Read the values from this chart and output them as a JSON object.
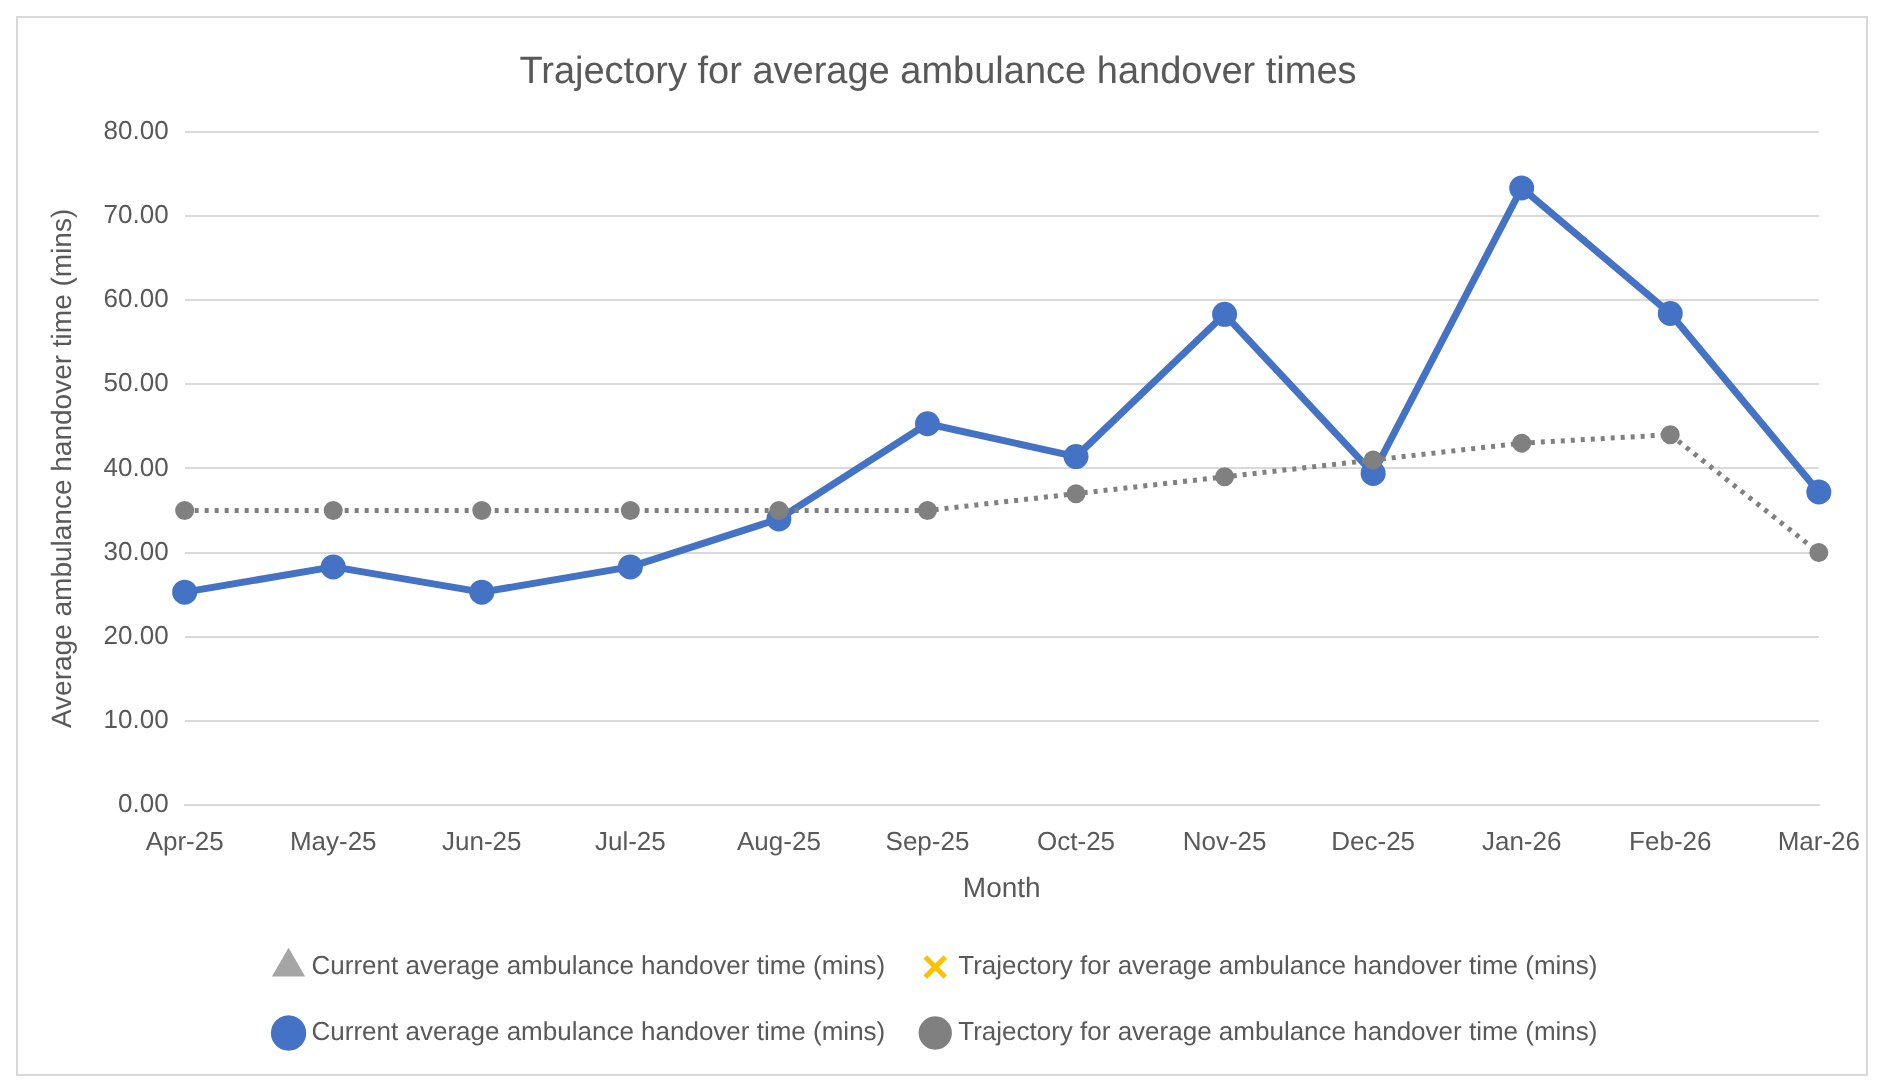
{
  "chart_data": {
    "type": "line",
    "title": "Trajectory for average ambulance handover times",
    "xlabel": "Month",
    "ylabel": "Average ambulance handover time (mins)",
    "categories": [
      "Apr-25",
      "May-25",
      "Jun-25",
      "Jul-25",
      "Aug-25",
      "Sep-25",
      "Oct-25",
      "Nov-25",
      "Dec-25",
      "Jan-26",
      "Feb-26",
      "Mar-26"
    ],
    "series": [
      {
        "name": "Current average ambulance handover time (mins)",
        "color": "#a5a5a5",
        "marker": "triangle",
        "line_style": "solid",
        "values": [
          null,
          null,
          null,
          null,
          null,
          null,
          null,
          null,
          null,
          null,
          null,
          null
        ]
      },
      {
        "name": "Trajectory for average ambulance handover time (mins)",
        "color": "#ffc000",
        "marker": "cross",
        "line_style": "dotted",
        "values": [
          null,
          null,
          null,
          null,
          null,
          null,
          null,
          null,
          null,
          null,
          null,
          null
        ]
      },
      {
        "name": "Current average ambulance handover time (mins)",
        "color": "#4472c4",
        "marker": "circle",
        "line_style": "solid",
        "values": [
          25.3,
          28.3,
          25.3,
          28.3,
          34.0,
          45.3,
          41.4,
          58.3,
          39.4,
          73.3,
          58.4,
          37.2
        ]
      },
      {
        "name": "Trajectory for average ambulance handover time (mins)",
        "color": "#808080",
        "marker": "circle",
        "line_style": "dotted",
        "values": [
          35,
          35,
          35,
          35,
          35,
          35,
          37,
          39,
          41,
          43,
          44,
          30
        ]
      }
    ],
    "ylim": [
      0,
      80
    ],
    "yticks": [
      {
        "value": 0,
        "label": "0.00"
      },
      {
        "value": 10,
        "label": "10.00"
      },
      {
        "value": 20,
        "label": "20.00"
      },
      {
        "value": 30,
        "label": "30.00"
      },
      {
        "value": 40,
        "label": "40.00"
      },
      {
        "value": 50,
        "label": "50.00"
      },
      {
        "value": 60,
        "label": "60.00"
      },
      {
        "value": 70,
        "label": "70.00"
      },
      {
        "value": 80,
        "label": "80.00"
      }
    ],
    "grid": "y",
    "legend": "bottom"
  }
}
